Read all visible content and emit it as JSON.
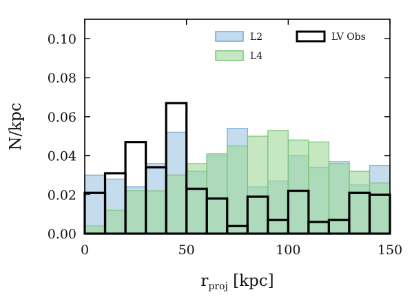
{
  "chart_data": {
    "type": "bar",
    "xlabel": "r",
    "xlabel_sub": "proj",
    "xlabel_suffix": " [kpc]",
    "ylabel": "N/kpc",
    "xlim": [
      0,
      150
    ],
    "ylim": [
      0,
      0.11
    ],
    "x_ticks": [
      0,
      50,
      100,
      150
    ],
    "x_tick_labels": [
      "0",
      "50",
      "100",
      "150"
    ],
    "y_ticks": [
      0.0,
      0.02,
      0.04,
      0.06,
      0.08,
      0.1
    ],
    "y_tick_labels": [
      "0.00",
      "0.02",
      "0.04",
      "0.06",
      "0.08",
      "0.10"
    ],
    "bin_edges": [
      0,
      10,
      20,
      30,
      40,
      50,
      60,
      70,
      80,
      90,
      100,
      110,
      120,
      130,
      140,
      150
    ],
    "grid": false,
    "legend_position": "top-right",
    "series": [
      {
        "name": "L2",
        "style": "filled",
        "fill": "#9ec5e3",
        "stroke": "#6fa8d4",
        "values": [
          0.03,
          0.028,
          0.024,
          0.036,
          0.052,
          0.032,
          0.04,
          0.054,
          0.024,
          0.027,
          0.04,
          0.034,
          0.037,
          0.025,
          0.035
        ]
      },
      {
        "name": "L4",
        "style": "filled",
        "fill": "#9fd99b",
        "stroke": "#7bc477",
        "values": [
          0.004,
          0.012,
          0.022,
          0.022,
          0.03,
          0.036,
          0.041,
          0.045,
          0.05,
          0.053,
          0.048,
          0.047,
          0.036,
          0.032,
          0.026
        ]
      },
      {
        "name": "LV Obs",
        "style": "step",
        "stroke": "#000000",
        "values": [
          0.021,
          0.031,
          0.047,
          0.034,
          0.067,
          0.023,
          0.018,
          0.004,
          0.019,
          0.007,
          0.022,
          0.006,
          0.007,
          0.021,
          0.02
        ]
      }
    ]
  }
}
